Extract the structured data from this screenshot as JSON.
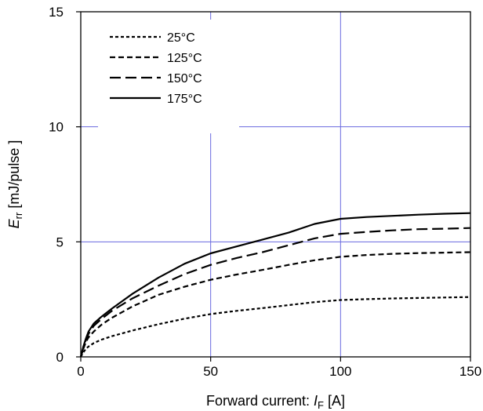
{
  "chart_data": {
    "type": "line",
    "title": "",
    "xlim": [
      0,
      150
    ],
    "ylim": [
      0,
      15
    ],
    "xticks": [
      "0",
      "50",
      "100",
      "150"
    ],
    "yticks": [
      "0",
      "5",
      "10",
      "15"
    ],
    "xlabel": {
      "text": "Forward current: ",
      "var": "I",
      "sub": "F",
      "unit": " [A]"
    },
    "ylabel": {
      "var": "E",
      "sub": "rr",
      "unit": " [mJ/pulse ]"
    },
    "grid": {
      "x": [
        50,
        100
      ],
      "y": [
        5,
        10
      ],
      "color": "#6a6adf"
    },
    "legend": {
      "position": "top-left"
    },
    "series": [
      {
        "name": "25°C",
        "dash": "short-dash",
        "x": [
          0,
          1,
          2,
          3,
          5,
          8,
          12,
          20,
          30,
          40,
          50,
          60,
          70,
          80,
          90,
          100,
          110,
          120,
          130,
          140,
          150
        ],
        "y": [
          0,
          0.2,
          0.35,
          0.45,
          0.6,
          0.75,
          0.9,
          1.15,
          1.42,
          1.66,
          1.86,
          2.0,
          2.12,
          2.25,
          2.38,
          2.47,
          2.51,
          2.54,
          2.56,
          2.58,
          2.6
        ]
      },
      {
        "name": "125°C",
        "dash": "medium-dash",
        "x": [
          0,
          1,
          2,
          3,
          5,
          8,
          12,
          20,
          30,
          40,
          50,
          60,
          70,
          80,
          90,
          100,
          110,
          120,
          130,
          140,
          150
        ],
        "y": [
          0,
          0.35,
          0.65,
          0.85,
          1.1,
          1.4,
          1.7,
          2.2,
          2.7,
          3.05,
          3.35,
          3.58,
          3.78,
          4.0,
          4.2,
          4.35,
          4.43,
          4.48,
          4.51,
          4.53,
          4.55
        ]
      },
      {
        "name": "150°C",
        "dash": "long-dash",
        "x": [
          0,
          1,
          2,
          3,
          5,
          8,
          12,
          20,
          30,
          40,
          50,
          60,
          70,
          80,
          90,
          100,
          110,
          120,
          130,
          140,
          150
        ],
        "y": [
          0,
          0.4,
          0.75,
          1.0,
          1.35,
          1.65,
          2.0,
          2.55,
          3.1,
          3.6,
          4.0,
          4.3,
          4.55,
          4.85,
          5.15,
          5.35,
          5.43,
          5.5,
          5.55,
          5.57,
          5.6
        ]
      },
      {
        "name": "175°C",
        "dash": "solid",
        "x": [
          0,
          1,
          2,
          3,
          5,
          8,
          12,
          20,
          30,
          40,
          50,
          60,
          70,
          80,
          90,
          100,
          110,
          120,
          130,
          140,
          150
        ],
        "y": [
          0,
          0.45,
          0.8,
          1.1,
          1.45,
          1.75,
          2.1,
          2.75,
          3.45,
          4.05,
          4.5,
          4.8,
          5.1,
          5.4,
          5.78,
          6.0,
          6.08,
          6.13,
          6.18,
          6.22,
          6.25
        ]
      }
    ]
  }
}
